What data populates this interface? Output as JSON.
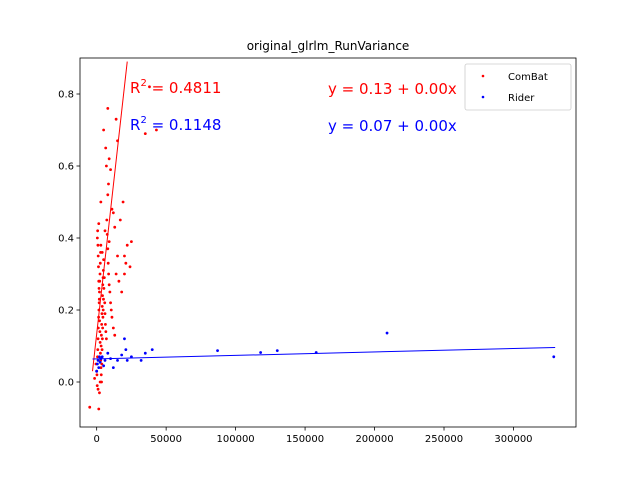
{
  "chart_data": {
    "type": "scatter",
    "title": "original_glrlm_RunVariance",
    "xlabel": "",
    "ylabel": "",
    "xlim": [
      -12000,
      345000
    ],
    "ylim": [
      -0.125,
      0.9
    ],
    "x_ticks": [
      0,
      50000,
      100000,
      150000,
      200000,
      250000,
      300000
    ],
    "x_tick_labels": [
      "0",
      "50000",
      "100000",
      "150000",
      "200000",
      "250000",
      "300000"
    ],
    "y_ticks": [
      0.0,
      0.2,
      0.4,
      0.6,
      0.8
    ],
    "y_tick_labels": [
      "0.0",
      "0.2",
      "0.4",
      "0.6",
      "0.8"
    ],
    "grid": false,
    "legend": {
      "position": "top-right",
      "entries": [
        "ComBat",
        "Rider"
      ]
    },
    "annotations": [
      {
        "text_r2": "R",
        "text_r2_value": " = 0.4811",
        "color": "#ff0000"
      },
      {
        "text_r2": "R",
        "text_r2_value": " = 0.1148",
        "color": "#0000ff"
      },
      {
        "text": "y = 0.13 + 0.00x",
        "color": "#ff0000"
      },
      {
        "text": "y = 0.07 + 0.00x",
        "color": "#0000ff"
      }
    ],
    "series": [
      {
        "name": "ComBat",
        "color": "#ff0000",
        "fit": {
          "x": [
            -3000,
            22000
          ],
          "y": [
            0.03,
            0.89
          ]
        },
        "points": [
          [
            -5000,
            -0.07
          ],
          [
            1500,
            -0.075
          ],
          [
            -1500,
            0.01
          ],
          [
            -500,
            0.05
          ],
          [
            0,
            0.03
          ],
          [
            200,
            0.02
          ],
          [
            400,
            -0.01
          ],
          [
            600,
            0.07
          ],
          [
            800,
            0.09
          ],
          [
            1000,
            0.12
          ],
          [
            1200,
            0.15
          ],
          [
            1400,
            0.18
          ],
          [
            1600,
            0.2
          ],
          [
            1800,
            0.22
          ],
          [
            2000,
            0.25
          ],
          [
            2200,
            0.28
          ],
          [
            2400,
            0.3
          ],
          [
            2600,
            0.33
          ],
          [
            2800,
            0.36
          ],
          [
            3000,
            0.38
          ],
          [
            3200,
            0.1
          ],
          [
            3400,
            0.13
          ],
          [
            3600,
            0.16
          ],
          [
            3800,
            0.19
          ],
          [
            4000,
            0.21
          ],
          [
            4200,
            0.24
          ],
          [
            4400,
            0.27
          ],
          [
            4600,
            0.29
          ],
          [
            4800,
            0.31
          ],
          [
            5000,
            0.34
          ],
          [
            500,
            0.4
          ],
          [
            700,
            0.42
          ],
          [
            900,
            0.38
          ],
          [
            1100,
            0.35
          ],
          [
            1300,
            0.32
          ],
          [
            1500,
            0.28
          ],
          [
            1700,
            0.26
          ],
          [
            1900,
            0.23
          ],
          [
            2100,
            0.17
          ],
          [
            2300,
            0.14
          ],
          [
            2500,
            0.11
          ],
          [
            2700,
            0.08
          ],
          [
            2900,
            0.06
          ],
          [
            3100,
            0.04
          ],
          [
            3300,
            0.02
          ],
          [
            3500,
            0.0
          ],
          [
            3700,
            0.05
          ],
          [
            3900,
            0.09
          ],
          [
            4100,
            0.12
          ],
          [
            4300,
            0.15
          ],
          [
            4500,
            0.18
          ],
          [
            4700,
            0.2
          ],
          [
            4900,
            0.23
          ],
          [
            5200,
            0.26
          ],
          [
            5500,
            0.29
          ],
          [
            5800,
            0.22
          ],
          [
            6000,
            0.19
          ],
          [
            6300,
            0.16
          ],
          [
            6600,
            0.14
          ],
          [
            7000,
            0.12
          ],
          [
            7300,
            0.45
          ],
          [
            7600,
            0.41
          ],
          [
            8000,
            0.37
          ],
          [
            8300,
            0.33
          ],
          [
            8600,
            0.3
          ],
          [
            9000,
            0.27
          ],
          [
            9500,
            0.25
          ],
          [
            10000,
            0.22
          ],
          [
            10500,
            0.2
          ],
          [
            11000,
            0.18
          ],
          [
            12000,
            0.15
          ],
          [
            13000,
            0.13
          ],
          [
            14000,
            0.3
          ],
          [
            15000,
            0.35
          ],
          [
            16000,
            0.28
          ],
          [
            18000,
            0.25
          ],
          [
            20000,
            0.3
          ],
          [
            21000,
            0.33
          ],
          [
            22000,
            0.38
          ],
          [
            24000,
            0.32
          ],
          [
            8000,
            0.52
          ],
          [
            8500,
            0.55
          ],
          [
            9000,
            0.62
          ],
          [
            10000,
            0.59
          ],
          [
            11000,
            0.48
          ],
          [
            12000,
            0.47
          ],
          [
            13000,
            0.43
          ],
          [
            7000,
            0.6
          ],
          [
            6500,
            0.65
          ],
          [
            5000,
            0.7
          ],
          [
            8000,
            0.76
          ],
          [
            15000,
            0.67
          ],
          [
            19000,
            0.5
          ],
          [
            20000,
            0.35
          ],
          [
            25000,
            0.39
          ],
          [
            17000,
            0.45
          ],
          [
            14000,
            0.73
          ],
          [
            35000,
            0.69
          ],
          [
            43000,
            0.7
          ],
          [
            38000,
            0.82
          ],
          [
            3000,
            0.5
          ],
          [
            1500,
            0.44
          ],
          [
            4000,
            0.36
          ],
          [
            6000,
            0.42
          ],
          [
            9000,
            0.39
          ],
          [
            2000,
            -0.03
          ],
          [
            1000,
            -0.02
          ],
          [
            2500,
            0.0
          ]
        ]
      },
      {
        "name": "Rider",
        "color": "#0000ff",
        "fit": {
          "x": [
            -3000,
            330000
          ],
          "y": [
            0.064,
            0.096
          ]
        },
        "points": [
          [
            0,
            0.03
          ],
          [
            500,
            0.05
          ],
          [
            1000,
            0.06
          ],
          [
            1500,
            0.04
          ],
          [
            2000,
            0.07
          ],
          [
            2500,
            0.055
          ],
          [
            3000,
            0.065
          ],
          [
            4000,
            0.07
          ],
          [
            5000,
            0.045
          ],
          [
            6000,
            0.06
          ],
          [
            8000,
            0.08
          ],
          [
            10000,
            0.065
          ],
          [
            12000,
            0.04
          ],
          [
            15000,
            0.06
          ],
          [
            18000,
            0.075
          ],
          [
            20000,
            0.12
          ],
          [
            21000,
            0.09
          ],
          [
            22000,
            0.06
          ],
          [
            25000,
            0.07
          ],
          [
            32000,
            0.06
          ],
          [
            35000,
            0.08
          ],
          [
            40000,
            0.09
          ],
          [
            87000,
            0.087
          ],
          [
            118000,
            0.082
          ],
          [
            130000,
            0.087
          ],
          [
            158000,
            0.082
          ],
          [
            209000,
            0.136
          ],
          [
            329000,
            0.07
          ]
        ]
      }
    ]
  }
}
